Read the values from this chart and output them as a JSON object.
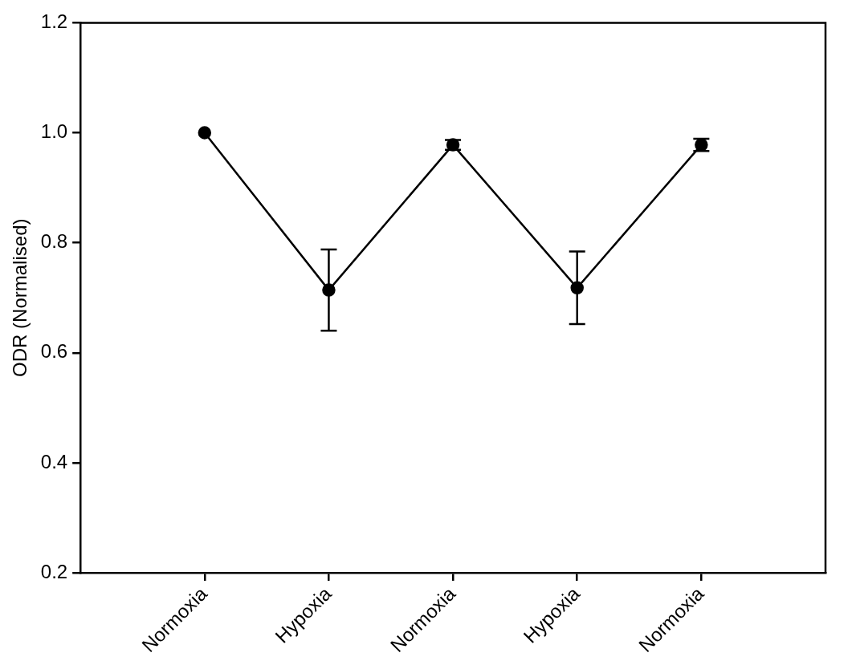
{
  "chart_data": {
    "type": "line",
    "ylabel": "ODR (Normalised)",
    "categories": [
      "Normoxia",
      "Hypoxia",
      "Normoxia",
      "Hypoxia",
      "Normoxia"
    ],
    "values": [
      1.0,
      0.714,
      0.978,
      0.718,
      0.978
    ],
    "errors": [
      null,
      0.074,
      0.009,
      0.066,
      0.011
    ],
    "color": "#000000",
    "marker": "circle",
    "line_style": "solid",
    "ylim": [
      0.2,
      1.2
    ],
    "yticks": [
      {
        "value": 0.2,
        "label": "0.2"
      },
      {
        "value": 0.4,
        "label": "0.4"
      },
      {
        "value": 0.6,
        "label": "0.6"
      },
      {
        "value": 0.8,
        "label": "0.8"
      },
      {
        "value": 1.0,
        "label": "1.0"
      },
      {
        "value": 1.2,
        "label": "1.2"
      }
    ],
    "grid": false,
    "legend": false
  }
}
